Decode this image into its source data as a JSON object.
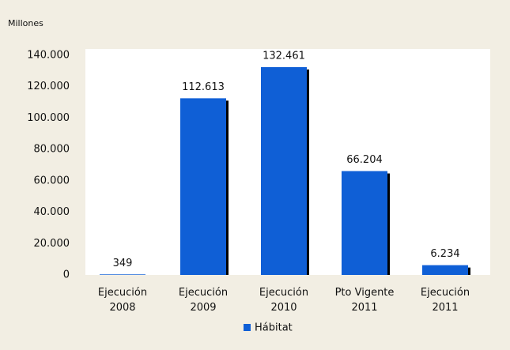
{
  "chart_data": {
    "type": "bar",
    "y_axis_label": "Millones",
    "categories": [
      "Ejecución 2008",
      "Ejecución 2009",
      "Ejecución 2010",
      "Pto Vigente 2011",
      "Ejecución 2011"
    ],
    "series": [
      {
        "name": "Hábitat",
        "color": "#0f5fd6",
        "values": [
          349,
          112613,
          132461,
          66204,
          6234
        ],
        "value_labels": [
          "349",
          "112.613",
          "132.461",
          "66.204",
          "6.234"
        ]
      }
    ],
    "ylim": [
      0,
      140000
    ],
    "yticks": [
      0,
      {
        "value": 20000,
        "label": "20.000"
      },
      {
        "value": 40000,
        "label": "40.000"
      },
      {
        "value": 60000,
        "label": "60.000"
      },
      {
        "value": 80000,
        "label": "80.000"
      },
      {
        "value": 100000,
        "label": "100.000"
      },
      {
        "value": 120000,
        "label": "120.000"
      },
      {
        "value": 140000,
        "label": "140.000"
      }
    ],
    "legend": "bottom"
  }
}
